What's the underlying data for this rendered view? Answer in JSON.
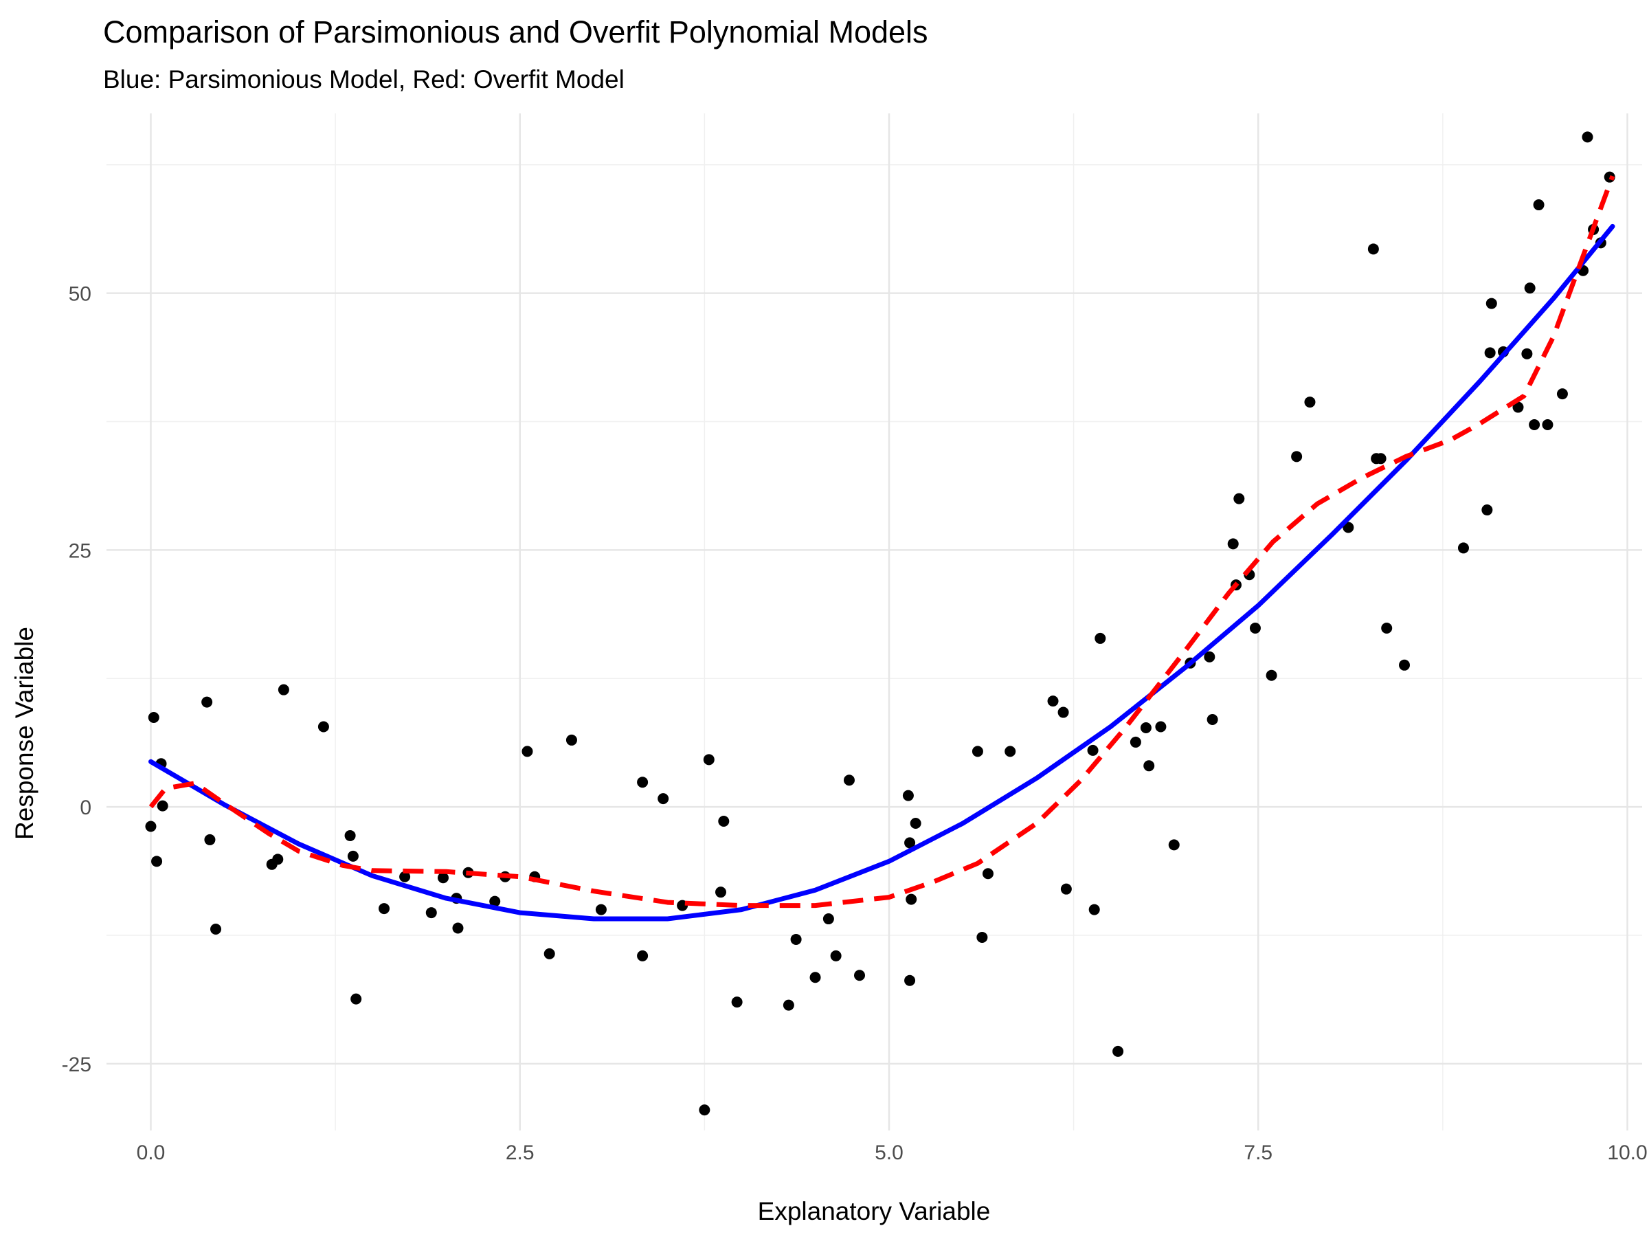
{
  "chart_data": {
    "type": "scatter",
    "title": "Comparison of Parsimonious and Overfit Polynomial Models",
    "subtitle": "Blue: Parsimonious Model, Red: Overfit Model",
    "xlabel": "Explanatory Variable",
    "ylabel": "Response Variable",
    "xlim": [
      -0.3,
      10.1
    ],
    "ylim": [
      -31.5,
      67.5
    ],
    "x_ticks": [
      0.0,
      2.5,
      5.0,
      7.5,
      10.0
    ],
    "x_tick_labels": [
      "0.0",
      "2.5",
      "5.0",
      "7.5",
      "10.0"
    ],
    "y_ticks": [
      -25,
      0,
      25,
      50
    ],
    "y_tick_labels": [
      "-25",
      "0",
      "25",
      "50"
    ],
    "x_minor_ticks": [
      1.25,
      3.75,
      6.25,
      8.75
    ],
    "y_minor_ticks": [
      -12.5,
      12.5,
      37.5,
      62.5
    ],
    "grid": true,
    "legend": "none",
    "colors": {
      "points": "#000000",
      "parsimonious": "#0000ff",
      "overfit": "#ff0000"
    },
    "points": [
      [
        0.0,
        -1.9
      ],
      [
        0.02,
        8.7
      ],
      [
        0.04,
        -5.3
      ],
      [
        0.07,
        4.2
      ],
      [
        0.08,
        0.1
      ],
      [
        0.38,
        10.2
      ],
      [
        0.4,
        -3.2
      ],
      [
        0.44,
        -11.9
      ],
      [
        0.82,
        -5.6
      ],
      [
        0.86,
        -5.1
      ],
      [
        0.9,
        11.4
      ],
      [
        1.17,
        7.8
      ],
      [
        1.35,
        -2.8
      ],
      [
        1.37,
        -4.8
      ],
      [
        1.39,
        -18.7
      ],
      [
        1.58,
        -9.9
      ],
      [
        1.72,
        -6.8
      ],
      [
        1.9,
        -10.3
      ],
      [
        1.98,
        -6.9
      ],
      [
        2.07,
        -8.9
      ],
      [
        2.08,
        -11.8
      ],
      [
        2.15,
        -6.4
      ],
      [
        2.33,
        -9.2
      ],
      [
        2.4,
        -6.8
      ],
      [
        2.55,
        5.4
      ],
      [
        2.6,
        -6.8
      ],
      [
        2.7,
        -14.3
      ],
      [
        2.85,
        6.5
      ],
      [
        3.05,
        -10.0
      ],
      [
        3.33,
        2.4
      ],
      [
        3.33,
        -14.5
      ],
      [
        3.47,
        0.8
      ],
      [
        3.6,
        -9.6
      ],
      [
        3.75,
        -29.5
      ],
      [
        3.78,
        4.6
      ],
      [
        3.86,
        -8.3
      ],
      [
        3.88,
        -1.4
      ],
      [
        3.97,
        -19.0
      ],
      [
        4.32,
        -19.3
      ],
      [
        4.37,
        -12.9
      ],
      [
        4.5,
        -16.6
      ],
      [
        4.59,
        -10.9
      ],
      [
        4.64,
        -14.5
      ],
      [
        4.73,
        2.6
      ],
      [
        4.8,
        -16.4
      ],
      [
        5.13,
        1.1
      ],
      [
        5.14,
        -3.5
      ],
      [
        5.14,
        -16.9
      ],
      [
        5.15,
        -9.0
      ],
      [
        5.18,
        -1.6
      ],
      [
        5.6,
        5.4
      ],
      [
        5.63,
        -12.7
      ],
      [
        5.67,
        -6.5
      ],
      [
        5.82,
        5.4
      ],
      [
        6.11,
        10.3
      ],
      [
        6.18,
        9.2
      ],
      [
        6.2,
        -8.0
      ],
      [
        6.38,
        5.5
      ],
      [
        6.39,
        -10.0
      ],
      [
        6.43,
        16.4
      ],
      [
        6.55,
        -23.8
      ],
      [
        6.67,
        6.3
      ],
      [
        6.74,
        7.7
      ],
      [
        6.76,
        4.0
      ],
      [
        6.84,
        7.8
      ],
      [
        6.93,
        -3.7
      ],
      [
        7.04,
        14.0
      ],
      [
        7.17,
        14.6
      ],
      [
        7.19,
        8.5
      ],
      [
        7.33,
        25.6
      ],
      [
        7.35,
        21.6
      ],
      [
        7.37,
        30.0
      ],
      [
        7.44,
        22.6
      ],
      [
        7.48,
        17.4
      ],
      [
        7.59,
        12.8
      ],
      [
        7.76,
        34.1
      ],
      [
        7.85,
        39.4
      ],
      [
        8.11,
        27.2
      ],
      [
        8.28,
        54.3
      ],
      [
        8.3,
        33.9
      ],
      [
        8.33,
        33.9
      ],
      [
        8.37,
        17.4
      ],
      [
        8.49,
        13.8
      ],
      [
        8.89,
        25.2
      ],
      [
        9.05,
        28.9
      ],
      [
        9.07,
        44.2
      ],
      [
        9.08,
        49.0
      ],
      [
        9.16,
        44.3
      ],
      [
        9.26,
        38.9
      ],
      [
        9.32,
        44.1
      ],
      [
        9.34,
        50.5
      ],
      [
        9.37,
        37.2
      ],
      [
        9.4,
        58.6
      ],
      [
        9.46,
        37.2
      ],
      [
        9.56,
        40.2
      ],
      [
        9.7,
        52.2
      ],
      [
        9.73,
        65.2
      ],
      [
        9.77,
        56.2
      ],
      [
        9.82,
        54.9
      ],
      [
        9.88,
        61.3
      ]
    ],
    "series": [
      {
        "type": "line",
        "style": "solid",
        "color": "#0000ff",
        "x": [
          0.0,
          0.5,
          1.0,
          1.5,
          2.0,
          2.5,
          3.0,
          3.35,
          3.5,
          4.0,
          4.5,
          5.0,
          5.5,
          6.0,
          6.5,
          7.0,
          7.5,
          8.0,
          8.5,
          9.0,
          9.5,
          9.9
        ],
        "y": [
          4.4,
          0.2,
          -3.6,
          -6.7,
          -8.9,
          -10.3,
          -10.9,
          -10.9,
          -10.9,
          -10.0,
          -8.1,
          -5.3,
          -1.6,
          2.8,
          7.8,
          13.5,
          19.6,
          26.5,
          33.7,
          41.4,
          49.5,
          56.5
        ]
      },
      {
        "type": "line",
        "style": "dashed",
        "color": "#ff0000",
        "x": [
          0.0,
          0.1,
          0.3,
          0.5,
          0.8,
          1.0,
          1.3,
          1.5,
          2.0,
          2.5,
          3.0,
          3.5,
          4.0,
          4.5,
          5.0,
          5.3,
          5.6,
          6.0,
          6.3,
          6.6,
          7.0,
          7.3,
          7.6,
          7.9,
          8.2,
          8.5,
          8.8,
          9.0,
          9.3,
          9.5,
          9.7,
          9.9
        ],
        "y": [
          0.0,
          1.8,
          2.3,
          0.3,
          -2.6,
          -4.3,
          -5.7,
          -6.2,
          -6.3,
          -6.8,
          -8.2,
          -9.3,
          -9.6,
          -9.6,
          -8.8,
          -7.3,
          -5.5,
          -1.6,
          2.6,
          7.7,
          15.1,
          20.8,
          25.8,
          29.5,
          32.0,
          34.1,
          35.7,
          37.3,
          40.0,
          45.8,
          53.6,
          61.4
        ]
      }
    ]
  }
}
